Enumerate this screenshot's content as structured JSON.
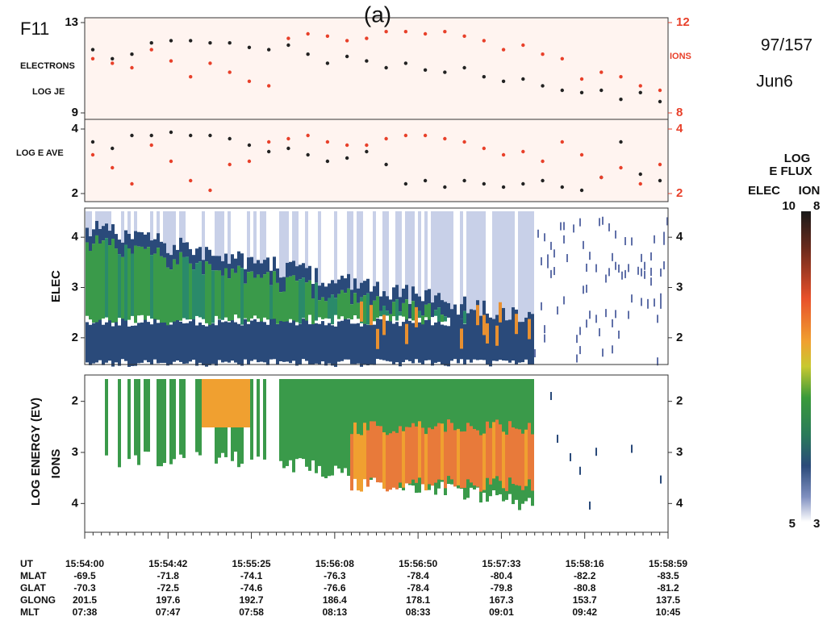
{
  "satellite": "F11",
  "panel_label": "(a)",
  "date_code": "97/157",
  "date": "Jun6",
  "je_panel": {
    "type": "scatter",
    "left_labels": [
      "ELECTRONS",
      "LOG JE"
    ],
    "right_label": "IONS",
    "ylim": [
      9,
      13
    ],
    "yticks": [
      9,
      13
    ],
    "y2lim": [
      8,
      12
    ],
    "y2ticks": [
      8,
      12
    ],
    "series": [
      {
        "name": "ELECTRONS",
        "color": "#222222",
        "values": [
          11.8,
          11.4,
          11.6,
          12.1,
          12.2,
          12.2,
          12.1,
          12.1,
          11.9,
          11.8,
          12.0,
          11.6,
          11.2,
          11.5,
          11.3,
          11.0,
          11.2,
          10.9,
          10.8,
          11.0,
          10.6,
          10.4,
          10.5,
          10.2,
          10.0,
          9.9,
          10.0,
          9.6,
          9.9,
          9.5
        ]
      },
      {
        "name": "IONS",
        "color": "#e8402a",
        "axis": "y2",
        "values": [
          10.4,
          10.2,
          10.0,
          10.8,
          10.3,
          9.6,
          10.2,
          9.8,
          9.4,
          9.2,
          11.3,
          11.5,
          11.4,
          11.2,
          11.3,
          11.6,
          11.6,
          11.5,
          11.6,
          11.4,
          11.2,
          10.8,
          11.0,
          10.6,
          10.4,
          9.5,
          9.8,
          9.6,
          9.2,
          9.0
        ]
      }
    ]
  },
  "eave_panel": {
    "type": "scatter",
    "label": "LOG E AVE",
    "ylim": [
      2,
      4
    ],
    "yticks": [
      2,
      4
    ],
    "y2lim": [
      2,
      4
    ],
    "y2ticks": [
      2,
      4
    ],
    "series": [
      {
        "color": "#222222",
        "values": [
          3.6,
          3.4,
          3.8,
          3.8,
          3.9,
          3.8,
          3.8,
          3.7,
          3.5,
          3.3,
          3.4,
          3.2,
          3.0,
          3.1,
          3.3,
          2.9,
          2.3,
          2.4,
          2.2,
          2.4,
          2.3,
          2.2,
          2.3,
          2.4,
          2.2,
          2.1,
          2.5,
          3.6,
          2.6,
          2.4
        ]
      },
      {
        "color": "#e8402a",
        "axis": "y2",
        "values": [
          3.2,
          2.8,
          2.3,
          3.5,
          3.0,
          2.4,
          2.1,
          2.9,
          3.0,
          3.6,
          3.7,
          3.8,
          3.6,
          3.5,
          3.5,
          3.7,
          3.8,
          3.8,
          3.7,
          3.6,
          3.4,
          3.2,
          3.3,
          3.0,
          3.6,
          3.2,
          2.5,
          2.8,
          2.3,
          2.9
        ]
      }
    ]
  },
  "spectrogram": {
    "y_label": "LOG ENERGY (EV)",
    "elec_label": "ELEC",
    "ion_label": "IONS",
    "elec_ylim": [
      1.5,
      4.5
    ],
    "elec_yticks": [
      2,
      3,
      4
    ],
    "ion_ylim": [
      1.5,
      4.5
    ],
    "ion_yticks": [
      2,
      3,
      4
    ]
  },
  "colorbar": {
    "title": [
      "LOG",
      "E FLUX"
    ],
    "elec_label": "ELEC",
    "ion_label": "ION",
    "elec_max": 10,
    "ion_max": 8,
    "elec_min": 5,
    "ion_min": 3
  },
  "ephemeris": {
    "row_labels": [
      "UT",
      "MLAT",
      "GLAT",
      "GLONG",
      "MLT"
    ],
    "columns": [
      [
        "15:54:00",
        "-69.5",
        "-70.3",
        "201.5",
        "07:38"
      ],
      [
        "15:54:42",
        "-71.8",
        "-72.5",
        "197.6",
        "07:47"
      ],
      [
        "15:55:25",
        "-74.1",
        "-74.6",
        "192.7",
        "07:58"
      ],
      [
        "15:56:08",
        "-76.3",
        "-76.6",
        "186.4",
        "08:13"
      ],
      [
        "15:56:50",
        "-78.4",
        "-78.4",
        "178.1",
        "08:33"
      ],
      [
        "15:57:33",
        "-80.4",
        "-79.8",
        "167.3",
        "09:01"
      ],
      [
        "15:58:16",
        "-82.2",
        "-80.8",
        "153.7",
        "09:42"
      ],
      [
        "15:58:59",
        "-83.5",
        "-81.2",
        "137.5",
        "10:45"
      ]
    ]
  }
}
